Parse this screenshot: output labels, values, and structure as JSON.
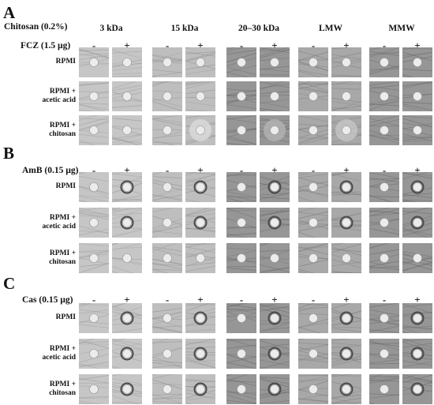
{
  "figure": {
    "header_label": "Chitosan (0.2%)",
    "columns": [
      "3 kDa",
      "15 kDa",
      "20–30 kDa",
      "LMW",
      "MMW"
    ],
    "signs": [
      "-",
      "+"
    ],
    "row_labels": [
      [
        "RPMI"
      ],
      [
        "RPMI +",
        "acetic acid"
      ],
      [
        "RPMI +",
        "chitosan"
      ]
    ],
    "panels": [
      {
        "letter": "A",
        "drug": "FCZ (1.5 µg)"
      },
      {
        "letter": "B",
        "drug": "AmB (0.15 µg)"
      },
      {
        "letter": "C",
        "drug": "Cas (0.15 µg)"
      }
    ]
  }
}
